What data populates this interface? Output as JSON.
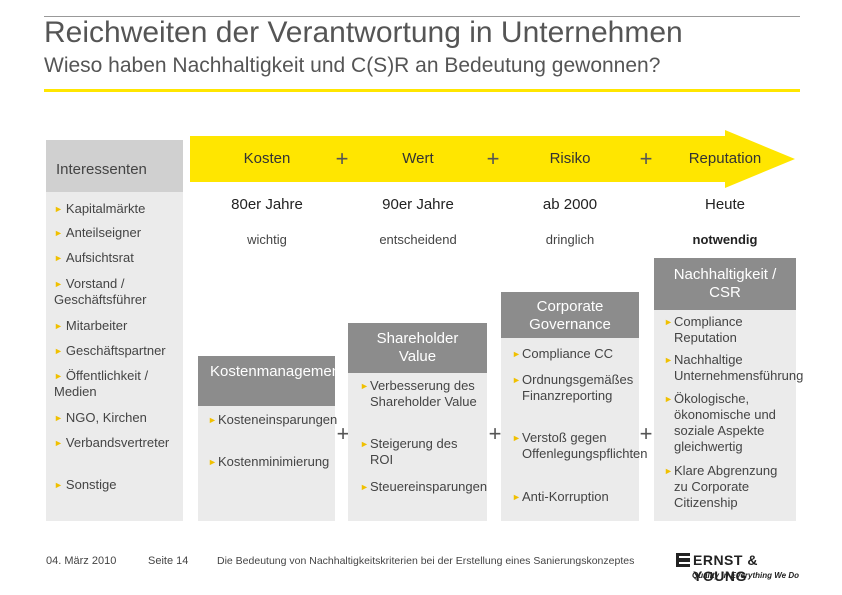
{
  "header": {
    "title": "Reichweiten der Verantwortung in Unternehmen",
    "subtitle": "Wieso haben Nachhaltigkeit und C(S)R an Bedeutung gewonnen?"
  },
  "stakeholders": {
    "heading": "Interessenten",
    "items": [
      "Kapitalmärkte",
      "Anteilseigner",
      "Aufsichtsrat",
      "Vorstand / Geschäftsführer",
      "Mitarbeiter",
      "Geschäftspartner",
      "Öffentlichkeit / Medien",
      "NGO, Kirchen",
      "Verbandsvertreter",
      "Sonstige"
    ]
  },
  "arrow": {
    "columns": [
      {
        "label": "Kosten",
        "era": "80er Jahre",
        "severity": "wichtig"
      },
      {
        "label": "Wert",
        "era": "90er Jahre",
        "severity": "entscheidend"
      },
      {
        "label": "Risiko",
        "era": "ab 2000",
        "severity": "dringlich"
      },
      {
        "label": "Reputation",
        "era": "Heute",
        "severity": "notwendig"
      }
    ],
    "plus_sign": "+"
  },
  "columns": [
    {
      "title": "Kostenmanagement",
      "items": [
        "Kosteneinsparungen",
        "Kostenminimierung"
      ]
    },
    {
      "title": "Shareholder Value",
      "items": [
        "Verbesserung des Shareholder Value",
        "Steigerung des ROI",
        "Steuereinsparungen"
      ]
    },
    {
      "title": "Corporate Governance",
      "items": [
        "Compliance CC",
        "Ordnungsgemäßes Finanzreporting",
        "Verstoß gegen Offenlegungspflichten",
        "Anti-Korruption"
      ]
    },
    {
      "title": "Nachhaltigkeit / CSR",
      "items": [
        "Compliance Reputation",
        "Nachhaltige Unternehmensführung",
        "Ökologische, ökonomische und soziale Aspekte gleichwertig",
        "Klare Abgrenzung zu Corporate Citizenship"
      ]
    }
  ],
  "footer": {
    "date": "04. März 2010",
    "page": "Seite 14",
    "caption": "Die Bedeutung von Nachhaltigkeitskriterien bei der Erstellung eines Sanierungskonzeptes",
    "logo_name": "ERNST & YOUNG",
    "logo_tagline": "Quality In Everything We Do"
  },
  "colors": {
    "accent": "#ffe600",
    "panel": "#ebebeb",
    "box": "#8c8c8c"
  }
}
